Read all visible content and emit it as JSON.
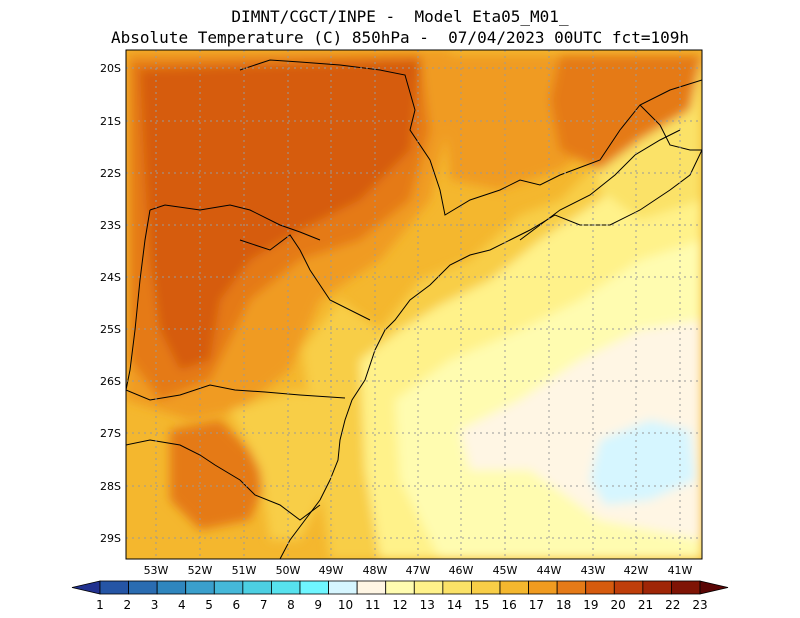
{
  "title_line1": "DIMNT/CGCT/INPE -  Model Eta05_M01_",
  "title_line2": "Absolute Temperature (C) 850hPa -  07/04/2023 00UTC fct=109h",
  "lat_labels": [
    "20S",
    "21S",
    "22S",
    "23S",
    "24S",
    "25S",
    "26S",
    "27S",
    "28S",
    "29S"
  ],
  "lon_labels": [
    "53W",
    "52W",
    "51W",
    "50W",
    "49W",
    "48W",
    "47W",
    "46W",
    "45W",
    "44W",
    "43W",
    "42W",
    "41W"
  ],
  "colorbar": {
    "labels": [
      "1",
      "2",
      "3",
      "4",
      "5",
      "6",
      "7",
      "8",
      "9",
      "10",
      "11",
      "12",
      "13",
      "14",
      "15",
      "16",
      "17",
      "18",
      "19",
      "20",
      "21",
      "22",
      "23"
    ],
    "colors": [
      "#21318f",
      "#2555a5",
      "#2a6cb1",
      "#2f86be",
      "#3a9fcc",
      "#45b8d9",
      "#4ccfe2",
      "#57e2ee",
      "#6ff6ff",
      "#d6f6ff",
      "#fff6e4",
      "#fffcb0",
      "#fff28a",
      "#fbe267",
      "#f8ce47",
      "#f4b72e",
      "#f09b20",
      "#e57a17",
      "#d65b0e",
      "#bf3e0a",
      "#9f2607",
      "#7f1405",
      "#5a0605"
    ]
  },
  "map_fill_colors": {
    "hot": "#d65b0e",
    "warm": "#e57a17",
    "orange": "#f09b20",
    "amber": "#f4b72e",
    "gold": "#f8ce47",
    "yellow": "#fbe267",
    "light_yellow": "#fff28a",
    "pale": "#fffcb0",
    "cream": "#fff6e4",
    "cool": "#d6f6ff"
  }
}
